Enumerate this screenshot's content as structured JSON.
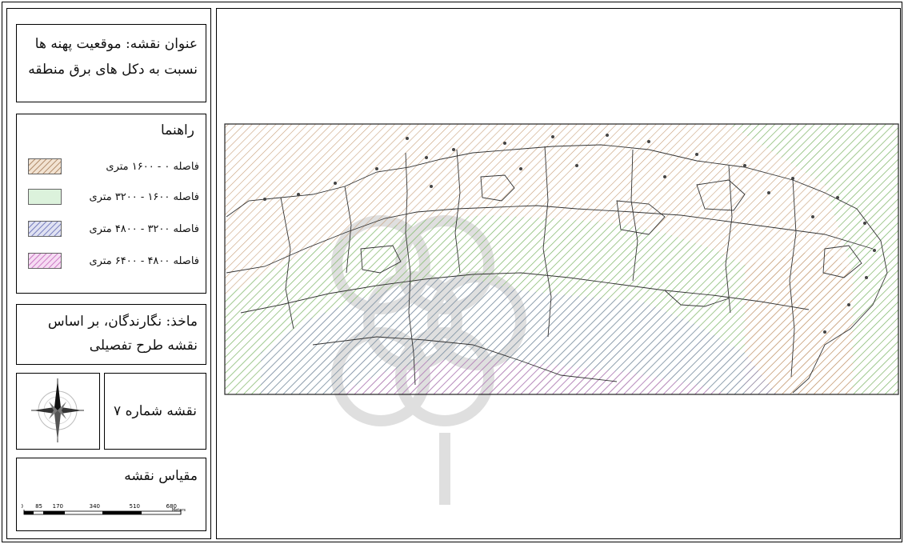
{
  "title": {
    "line1": "عنوان نقشه: موقعیت پهنه ها",
    "line2": "نسبت به دکل های برق منطقه"
  },
  "legend": {
    "heading": "راهنما",
    "items": [
      {
        "label": "فاصله ۰ - ۱۶۰۰ متری",
        "color": "#c9a27a"
      },
      {
        "label": "فاصله ۱۶۰۰ - ۳۲۰۰ متری",
        "color": "#9bd79b"
      },
      {
        "label": "فاصله ۳۲۰۰ - ۴۸۰۰ متری",
        "color": "#8a90c8"
      },
      {
        "label": "فاصله ۴۸۰۰ - ۶۴۰۰ متری",
        "color": "#d98bd2"
      }
    ]
  },
  "source": {
    "line1": "ماخذ: نگارندگان، بر اساس",
    "line2": "نقشه طرح تفصیلی"
  },
  "map_number": "نقشه شماره ۷",
  "scale": {
    "heading": "مقیاس نقشه",
    "ticks": [
      "0",
      "85",
      "170",
      "340",
      "510",
      "680"
    ],
    "unit": "Meters"
  },
  "compass": {
    "icon": "north-arrow-compass-icon"
  }
}
